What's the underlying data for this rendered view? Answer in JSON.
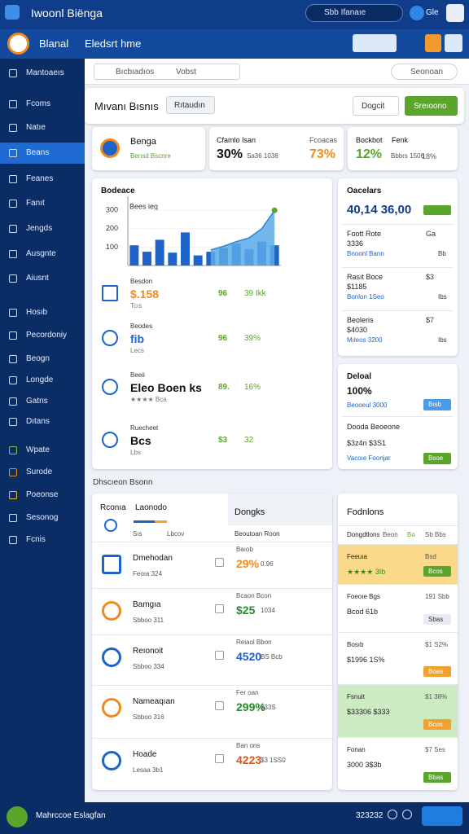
{
  "header": {
    "app_title": "Iwoonl Biënga",
    "search": "Sbb Ifanaıe",
    "user": "Gle"
  },
  "toolbar": {
    "brand": "Blanal",
    "section": "Eledsrt hme"
  },
  "sidebar": {
    "items": [
      "Mantoaeıs",
      "Fcoms",
      "Natıe",
      "Beans",
      "Feanes",
      "Fanıt",
      "Jengds",
      "Ausgnte",
      "Aiusnt",
      "Hosıb",
      "Pecordoniy",
      "Beogn",
      "Longde",
      "Gatns",
      "Dıtans",
      "Wpate",
      "Surode",
      "Poeonse",
      "Sesonog",
      "Fcnis"
    ]
  },
  "filters": {
    "search": "Bıcbıadıos",
    "view": "Vobst",
    "select": "Seonoan"
  },
  "page": {
    "title": "Mıvanı Bısnıs",
    "tab": "Rıtaudın",
    "secondary": "Dogcit",
    "primary": "Sreıoono"
  },
  "kpis": [
    {
      "title": "Benga",
      "sub": "Bensd Bscnre"
    },
    {
      "title": "Cfamlo Isan",
      "value": "30%",
      "sub": "Sa36 1038",
      "title2": "Fcoacas",
      "value2": "73%"
    },
    {
      "title": "Bockbot",
      "value": "12%",
      "sub": "Bbbrs 1506",
      "title2": "Fenk",
      "value2": "18%"
    }
  ],
  "overview": {
    "title": "Bodeace",
    "legend": "Bees ieg",
    "chart": {
      "ylim": [
        0,
        350
      ],
      "yticks": [
        100,
        200,
        300
      ],
      "bars": [
        110,
        75,
        140,
        70,
        180,
        55,
        75,
        95,
        120,
        90,
        130,
        110
      ],
      "line": [
        null,
        null,
        null,
        null,
        null,
        null,
        85,
        105,
        130,
        150,
        200,
        300
      ]
    },
    "rows": [
      {
        "label": "Besdon",
        "value": "$.158",
        "sub": "Tcıs",
        "stat": "96",
        "stat2": "39 Ikk"
      },
      {
        "label": "Beodes",
        "value": "fib",
        "sub": "Lecs",
        "stat": "96",
        "stat2": "39%"
      },
      {
        "label": "Beeii",
        "value": "Eleo Boen ks",
        "sub": "★★★★ Bca",
        "stat": "89.",
        "stat2": "16%"
      },
      {
        "label": "Ruecheet",
        "value": "Bcs",
        "sub": "Lbs",
        "stat": "$3",
        "stat2": "32"
      }
    ]
  },
  "summary": {
    "title": "Oacelars",
    "value": "40,14 36,00",
    "rows": [
      {
        "label": "Foott Rote",
        "value": "3336",
        "link": "Bnoonl Bann",
        "stat": "Ga",
        "stat2": "Bb"
      },
      {
        "label": "Rasıt Boce",
        "value": "$1185",
        "link": "Bonlon 1Seo",
        "stat": "$3",
        "stat2": "Ibs"
      },
      {
        "label": "Beoleris",
        "value": "$4030",
        "link": "Mıleos 3200",
        "stat": "$7",
        "stat2": "Ibs"
      }
    ]
  },
  "deal": {
    "title": "Deloal",
    "value": "100%",
    "link": "Beooeul 3000",
    "button": "Bısb",
    "label": "Dooda Beoeone",
    "value2": "$3z4n $3S1",
    "link2": "Vacoıe Foonjar",
    "button2": "Bsoe"
  },
  "section": "Dhscıeon Bsonn",
  "table": {
    "tab1": "Rconıa",
    "tab2": "Laonodo",
    "tab3": "Dongks",
    "col1": "Sıs",
    "col2": "Lbcov",
    "col3": "Beoutoan Roon",
    "rows": [
      {
        "name": "Dmehodan",
        "sub": "Feoıa 324",
        "meta": "Baıob",
        "value": "29%",
        "detail": "0.96"
      },
      {
        "name": "Bamgıa",
        "sub": "Sbboo 311",
        "meta": "Bcaon Bcon",
        "value": "$25",
        "detail": "1034"
      },
      {
        "name": "Reıonoit",
        "sub": "Sbboo 334",
        "meta": "Reiaol Bbon",
        "value": "4520",
        "detail": "BS Bcb"
      },
      {
        "name": "Nameaqıan",
        "sub": "Sbboo 316",
        "meta": "Fer oan",
        "value": "299%",
        "detail": "$33S"
      },
      {
        "name": "Hoade",
        "sub": "Lesaa 3b1",
        "meta": "Ban ons",
        "value": "4223",
        "detail": "$3 1SS0"
      }
    ]
  },
  "funds": {
    "title": "Fodnlons",
    "rows": [
      {
        "label": "Dongdtlons",
        "stat": "Sb Bbs",
        "value": "Beon",
        "button": "Bo"
      },
      {
        "label": "Feeuıa",
        "stat": "Bsd",
        "value": "★★★★ 3Ib",
        "button": "Bcos"
      },
      {
        "label": "Foeoıe Bgs",
        "stat": "191 Sbb",
        "value": "Bcod 61b",
        "button": "Sbas"
      },
      {
        "label": "Bosıb",
        "stat": "$1 S2%",
        "value": "$1996 1S%",
        "button": "Boas"
      },
      {
        "label": "Fsnuit",
        "stat": "$1 38%",
        "value": "$33306 $333",
        "button": "Bcos"
      },
      {
        "label": "Fonan",
        "stat": "$7 Ses",
        "value": "3000 3$3b",
        "button": "Bbas"
      }
    ]
  },
  "footer": {
    "label": "Mahrccoe Eslagfan",
    "code": "323232"
  }
}
